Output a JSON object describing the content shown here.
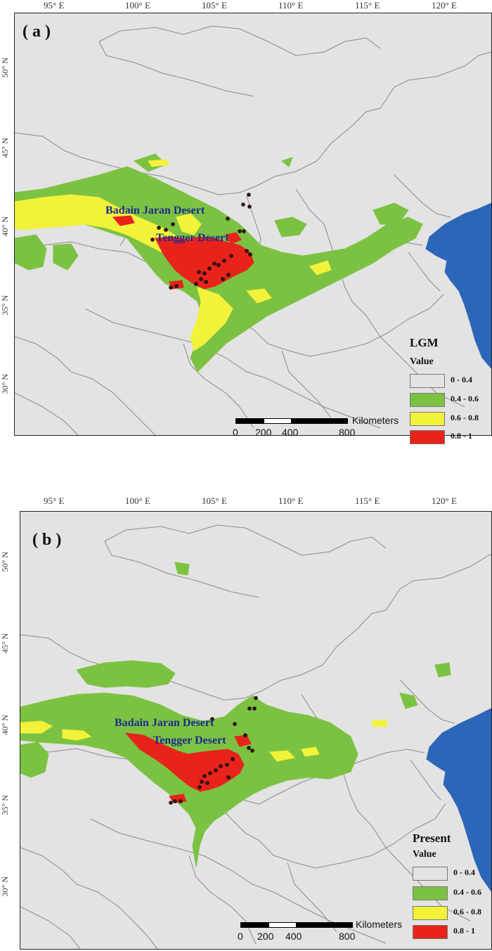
{
  "colors": {
    "background": "#e3e3e3",
    "border_lines": "#8a8a8a",
    "sea": "#2c66b8",
    "class_low": "#e3e3e3",
    "class_green": "#7cc242",
    "class_yellow": "#f2f23a",
    "class_red": "#e8231c",
    "points": "#3a1414",
    "desert_label": "#1c2a8c"
  },
  "longitude_ticks": [
    "95° E",
    "100° E",
    "105° E",
    "110° E",
    "115° E",
    "120° E"
  ],
  "latitude_ticks": [
    "50° N",
    "45° N",
    "40° N",
    "35° N",
    "30° N"
  ],
  "scale_bar": {
    "unit": "Kilometers",
    "labels": [
      "0",
      "200",
      "400",
      "800"
    ]
  },
  "panels": [
    {
      "id": "a",
      "label": "( a )",
      "legend_title": "LGM",
      "legend_subtitle": "Value",
      "classes": [
        "0 - 0.4",
        "0.4 - 0.6",
        "0.6 - 0.8",
        "0.8 - 1"
      ],
      "deserts": [
        "Badain Jaran Desert",
        "Tengger Desert"
      ]
    },
    {
      "id": "b",
      "label": "( b )",
      "legend_title": "Present",
      "legend_subtitle": "Value",
      "classes": [
        "0 - 0.4",
        "0.4 - 0.6",
        "0.6 - 0.8",
        "0.8 - 1"
      ],
      "deserts": [
        "Badain Jaran Desert",
        "Tengger Desert"
      ]
    }
  ]
}
